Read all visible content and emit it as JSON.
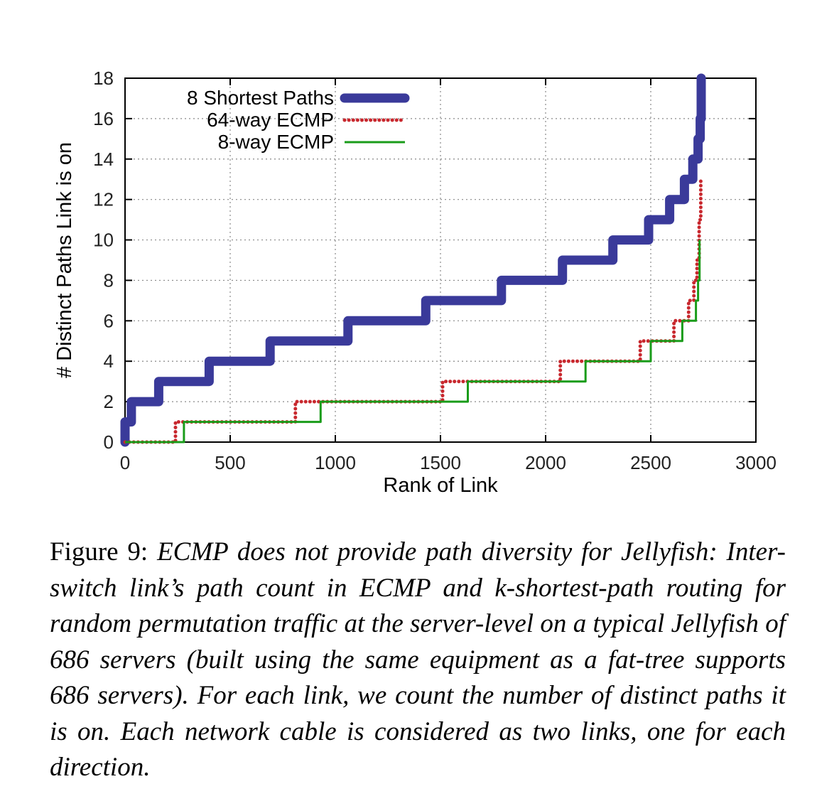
{
  "chart_data": {
    "type": "line",
    "xlabel": "Rank of Link",
    "ylabel": "# Distinct Paths Link is on",
    "xlim": [
      0,
      3000
    ],
    "ylim": [
      0,
      18
    ],
    "x_ticks": [
      "0",
      "500",
      "1000",
      "1500",
      "2000",
      "2500",
      "3000"
    ],
    "y_ticks": [
      "0",
      "2",
      "4",
      "6",
      "8",
      "10",
      "12",
      "14",
      "16",
      "18"
    ],
    "grid": true,
    "legend_position": "top-left",
    "series": [
      {
        "name": "8 Shortest Paths",
        "color": "#3a3a9a",
        "style": "thick-solid",
        "points": [
          [
            0,
            0
          ],
          [
            0,
            1
          ],
          [
            30,
            1
          ],
          [
            30,
            2
          ],
          [
            160,
            2
          ],
          [
            160,
            3
          ],
          [
            400,
            3
          ],
          [
            400,
            4
          ],
          [
            690,
            4
          ],
          [
            690,
            5
          ],
          [
            1060,
            5
          ],
          [
            1060,
            6
          ],
          [
            1430,
            6
          ],
          [
            1430,
            7
          ],
          [
            1790,
            7
          ],
          [
            1790,
            8
          ],
          [
            2080,
            8
          ],
          [
            2080,
            9
          ],
          [
            2320,
            9
          ],
          [
            2320,
            10
          ],
          [
            2490,
            10
          ],
          [
            2490,
            11
          ],
          [
            2590,
            11
          ],
          [
            2590,
            12
          ],
          [
            2660,
            12
          ],
          [
            2660,
            13
          ],
          [
            2700,
            13
          ],
          [
            2700,
            14
          ],
          [
            2725,
            14
          ],
          [
            2725,
            15
          ],
          [
            2735,
            15
          ],
          [
            2735,
            16
          ],
          [
            2740,
            16
          ],
          [
            2740,
            18
          ]
        ]
      },
      {
        "name": "64-way ECMP",
        "color": "#c8282e",
        "style": "dotted",
        "points": [
          [
            0,
            0
          ],
          [
            240,
            0
          ],
          [
            240,
            1
          ],
          [
            810,
            1
          ],
          [
            810,
            2
          ],
          [
            1510,
            2
          ],
          [
            1510,
            3
          ],
          [
            2070,
            3
          ],
          [
            2070,
            4
          ],
          [
            2450,
            4
          ],
          [
            2450,
            5
          ],
          [
            2610,
            5
          ],
          [
            2610,
            6
          ],
          [
            2680,
            6
          ],
          [
            2680,
            7
          ],
          [
            2705,
            7
          ],
          [
            2705,
            8
          ],
          [
            2720,
            8
          ],
          [
            2720,
            9
          ],
          [
            2730,
            9
          ],
          [
            2730,
            11
          ],
          [
            2738,
            11
          ],
          [
            2738,
            13
          ]
        ]
      },
      {
        "name": "8-way ECMP",
        "color": "#1a9c1a",
        "style": "solid",
        "points": [
          [
            0,
            0
          ],
          [
            280,
            0
          ],
          [
            280,
            1
          ],
          [
            930,
            1
          ],
          [
            930,
            2
          ],
          [
            1630,
            2
          ],
          [
            1630,
            3
          ],
          [
            2190,
            3
          ],
          [
            2190,
            4
          ],
          [
            2500,
            4
          ],
          [
            2500,
            5
          ],
          [
            2650,
            5
          ],
          [
            2650,
            6
          ],
          [
            2715,
            6
          ],
          [
            2715,
            7
          ],
          [
            2725,
            7
          ],
          [
            2725,
            8
          ],
          [
            2732,
            8
          ],
          [
            2732,
            10
          ]
        ]
      }
    ]
  },
  "caption": {
    "label": "Figure 9:",
    "text": "ECMP does not provide path diversity for Jellyfish: Inter-switch link’s path count in ECMP and k-shortest-path routing for random permutation traffic at the server-level on a typical Jellyfish of 686 servers (built using the same equipment as a fat-tree supports 686 servers). For each link, we count the number of distinct paths it is on. Each network cable is considered as two links, one for each direction."
  }
}
